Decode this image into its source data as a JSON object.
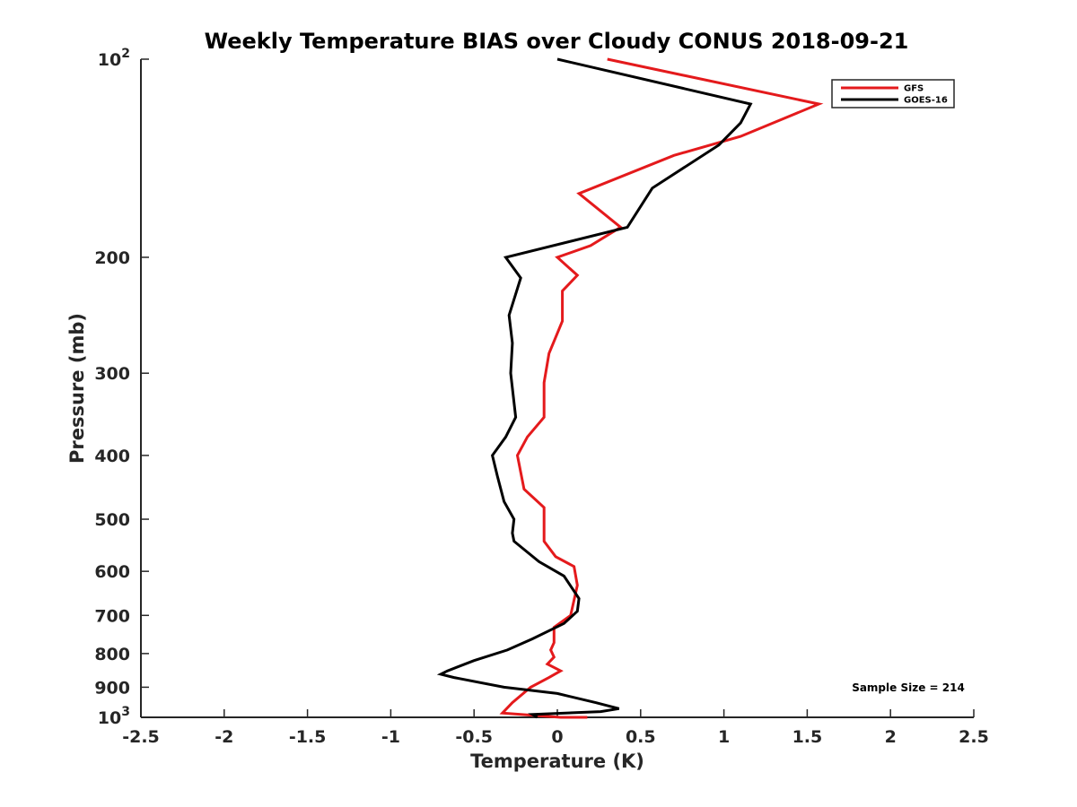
{
  "chart_data": {
    "type": "line",
    "title": "Weekly Temperature BIAS over Cloudy CONUS 2018-09-21",
    "xlabel": "Temperature (K)",
    "ylabel": "Pressure (mb)",
    "xlim": [
      -2.5,
      2.5
    ],
    "ylim": [
      100,
      1000
    ],
    "y_scale": "log",
    "y_reversed": true,
    "grid": false,
    "legend_position": "top-right",
    "x_ticks": [
      "-2.5",
      "-2",
      "-1.5",
      "-1",
      "-0.5",
      "0",
      "0.5",
      "1",
      "1.5",
      "2",
      "2.5"
    ],
    "y_ticks": [
      {
        "value": 100,
        "label": "10",
        "sup": "2"
      },
      {
        "value": 200,
        "label": "200",
        "sup": ""
      },
      {
        "value": 300,
        "label": "300",
        "sup": ""
      },
      {
        "value": 400,
        "label": "400",
        "sup": ""
      },
      {
        "value": 500,
        "label": "500",
        "sup": ""
      },
      {
        "value": 600,
        "label": "600",
        "sup": ""
      },
      {
        "value": 700,
        "label": "700",
        "sup": ""
      },
      {
        "value": 800,
        "label": "800",
        "sup": ""
      },
      {
        "value": 900,
        "label": "900",
        "sup": ""
      },
      {
        "value": 1000,
        "label": "10",
        "sup": "3"
      }
    ],
    "annotation": "Sample Size = 214",
    "series": [
      {
        "name": "GFS",
        "color": "#e41a1c",
        "points": [
          [
            0.3,
            100
          ],
          [
            1.57,
            117
          ],
          [
            1.1,
            131
          ],
          [
            0.7,
            140
          ],
          [
            0.13,
            160
          ],
          [
            0.38,
            180
          ],
          [
            0.2,
            192
          ],
          [
            0.0,
            200
          ],
          [
            0.12,
            213
          ],
          [
            0.03,
            225
          ],
          [
            0.03,
            250
          ],
          [
            -0.05,
            280
          ],
          [
            -0.08,
            310
          ],
          [
            -0.08,
            350
          ],
          [
            -0.18,
            375
          ],
          [
            -0.24,
            400
          ],
          [
            -0.2,
            450
          ],
          [
            -0.08,
            480
          ],
          [
            -0.08,
            540
          ],
          [
            -0.01,
            570
          ],
          [
            0.1,
            590
          ],
          [
            0.12,
            630
          ],
          [
            0.08,
            700
          ],
          [
            -0.02,
            730
          ],
          [
            -0.02,
            770
          ],
          [
            -0.04,
            790
          ],
          [
            -0.02,
            810
          ],
          [
            -0.06,
            830
          ],
          [
            0.02,
            850
          ],
          [
            -0.05,
            870
          ],
          [
            -0.16,
            900
          ],
          [
            -0.27,
            950
          ],
          [
            -0.33,
            985
          ],
          [
            0.02,
            1000
          ],
          [
            0.18,
            1000
          ]
        ]
      },
      {
        "name": "GOES-16",
        "color": "#000000",
        "points": [
          [
            0.0,
            100
          ],
          [
            1.16,
            117
          ],
          [
            1.1,
            125
          ],
          [
            0.97,
            135
          ],
          [
            0.57,
            157
          ],
          [
            0.42,
            180
          ],
          [
            -0.31,
            200
          ],
          [
            -0.22,
            215
          ],
          [
            -0.29,
            245
          ],
          [
            -0.27,
            270
          ],
          [
            -0.28,
            300
          ],
          [
            -0.25,
            350
          ],
          [
            -0.31,
            375
          ],
          [
            -0.39,
            400
          ],
          [
            -0.36,
            430
          ],
          [
            -0.32,
            470
          ],
          [
            -0.26,
            500
          ],
          [
            -0.27,
            525
          ],
          [
            -0.26,
            540
          ],
          [
            -0.11,
            580
          ],
          [
            0.04,
            610
          ],
          [
            0.13,
            660
          ],
          [
            0.12,
            690
          ],
          [
            0.04,
            720
          ],
          [
            -0.15,
            760
          ],
          [
            -0.3,
            790
          ],
          [
            -0.5,
            820
          ],
          [
            -0.66,
            850
          ],
          [
            -0.7,
            860
          ],
          [
            -0.62,
            870
          ],
          [
            -0.32,
            900
          ],
          [
            0.0,
            920
          ],
          [
            0.23,
            950
          ],
          [
            0.37,
            970
          ],
          [
            0.26,
            980
          ],
          [
            -0.15,
            990
          ],
          [
            -0.12,
            1000
          ]
        ]
      }
    ]
  }
}
